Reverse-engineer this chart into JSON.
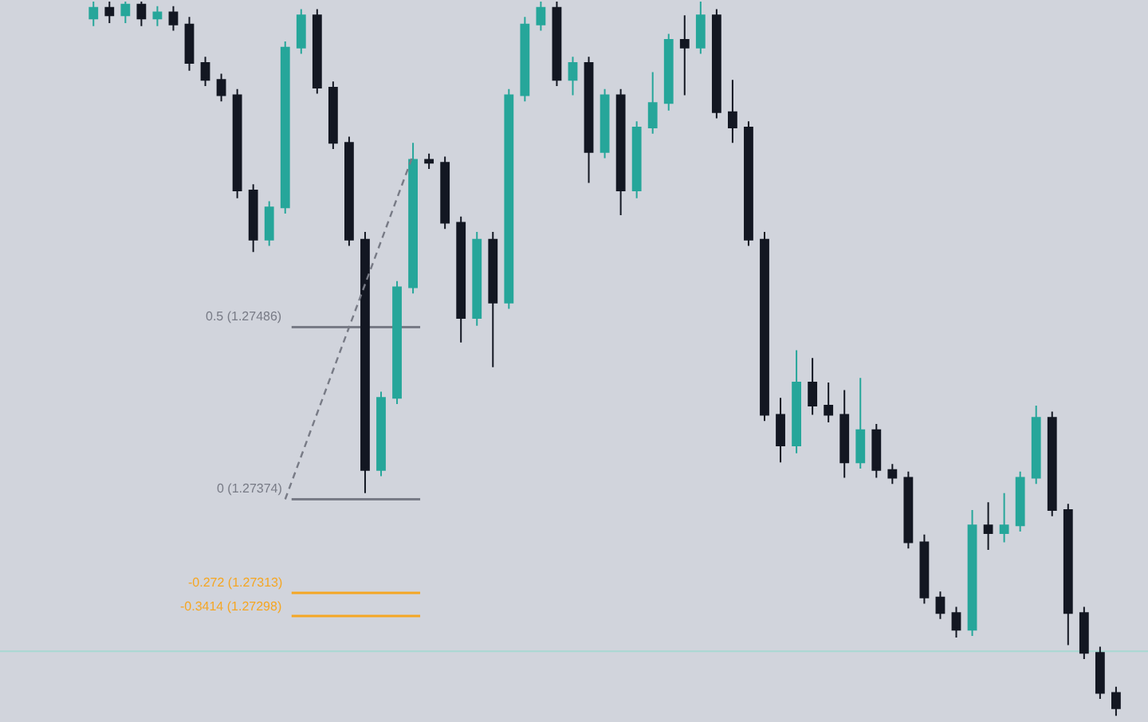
{
  "chart_data": {
    "type": "candlestick",
    "categories": [
      null,
      null,
      null,
      null,
      null,
      null,
      null,
      null,
      null,
      null,
      null,
      null,
      null,
      null,
      null,
      null,
      null,
      null,
      null,
      null,
      null,
      null,
      null,
      null,
      null,
      null,
      null,
      null,
      null,
      null,
      null,
      null,
      null,
      null,
      null,
      null,
      null,
      null,
      null,
      null,
      null,
      null,
      null,
      null,
      null,
      null,
      null,
      null,
      null,
      null,
      null,
      null,
      null,
      null,
      null,
      null,
      null,
      null,
      null,
      null,
      null,
      null,
      null,
      null,
      null
    ],
    "ohlc": [
      [
        1.27687,
        1.27698,
        1.27682,
        1.27694
      ],
      [
        1.27694,
        1.27698,
        1.27684,
        1.27689
      ],
      [
        1.27689,
        1.27698,
        1.27684,
        1.27696
      ],
      [
        1.27696,
        1.27698,
        1.27682,
        1.27687
      ],
      [
        1.27687,
        1.27695,
        1.27682,
        1.27691
      ],
      [
        1.27691,
        1.27695,
        1.27679,
        1.27683
      ],
      [
        1.27683,
        1.27688,
        1.27653,
        1.27658
      ],
      [
        1.27658,
        1.27662,
        1.27643,
        1.27647
      ],
      [
        1.27647,
        1.27651,
        1.27633,
        1.27637
      ],
      [
        1.27637,
        1.27641,
        1.2757,
        1.27575
      ],
      [
        1.27575,
        1.27579,
        1.27535,
        1.27543
      ],
      [
        1.27543,
        1.27568,
        1.27539,
        1.27564
      ],
      [
        1.27564,
        1.27672,
        1.2756,
        1.27668
      ],
      [
        1.27668,
        1.27693,
        1.27664,
        1.27689
      ],
      [
        1.27689,
        1.27693,
        1.27638,
        1.27642
      ],
      [
        1.27642,
        1.27646,
        1.27602,
        1.27606
      ],
      [
        1.27606,
        1.2761,
        1.27539,
        1.27543
      ],
      [
        1.27543,
        1.27548,
        1.27378,
        1.27393
      ],
      [
        1.27393,
        1.27444,
        1.27389,
        1.2744
      ],
      [
        1.2744,
        1.27516,
        1.27436,
        1.27512
      ],
      [
        1.27512,
        1.27606,
        1.27508,
        1.27595
      ],
      [
        1.27595,
        1.27599,
        1.27589,
        1.27593
      ],
      [
        1.27593,
        1.27597,
        1.2755,
        1.27554
      ],
      [
        1.27554,
        1.27558,
        1.27476,
        1.27492
      ],
      [
        1.27492,
        1.27548,
        1.27487,
        1.27543
      ],
      [
        1.27543,
        1.27548,
        1.2746,
        1.27502
      ],
      [
        1.27502,
        1.27641,
        1.27498,
        1.27637
      ],
      [
        1.27637,
        1.27688,
        1.27633,
        1.27683
      ],
      [
        1.27683,
        1.27698,
        1.27679,
        1.27694
      ],
      [
        1.27694,
        1.27698,
        1.27643,
        1.27647
      ],
      [
        1.27647,
        1.27662,
        1.27637,
        1.27658
      ],
      [
        1.27658,
        1.27662,
        1.2758,
        1.276
      ],
      [
        1.276,
        1.27641,
        1.27596,
        1.27637
      ],
      [
        1.27637,
        1.27641,
        1.27559,
        1.27575
      ],
      [
        1.27575,
        1.2762,
        1.2757,
        1.27616
      ],
      [
        1.27616,
        1.27652,
        1.27612,
        1.27632
      ],
      [
        1.27632,
        1.27677,
        1.27627,
        1.27673
      ],
      [
        1.27673,
        1.27689,
        1.27637,
        1.27668
      ],
      [
        1.27668,
        1.27698,
        1.27664,
        1.27689
      ],
      [
        1.27689,
        1.27693,
        1.27622,
        1.27626
      ],
      [
        1.27626,
        1.27647,
        1.27606,
        1.27616
      ],
      [
        1.27616,
        1.2762,
        1.27539,
        1.27543
      ],
      [
        1.27543,
        1.27548,
        1.27425,
        1.27429
      ],
      [
        1.27429,
        1.2744,
        1.27398,
        1.27409
      ],
      [
        1.27409,
        1.27471,
        1.27404,
        1.2745
      ],
      [
        1.2745,
        1.27466,
        1.27429,
        1.27435
      ],
      [
        1.27435,
        1.2745,
        1.27424,
        1.27429
      ],
      [
        1.27429,
        1.27445,
        1.27388,
        1.27398
      ],
      [
        1.27398,
        1.27453,
        1.27394,
        1.27419
      ],
      [
        1.27419,
        1.27423,
        1.27388,
        1.27393
      ],
      [
        1.27393,
        1.27397,
        1.27384,
        1.27388
      ],
      [
        1.27388,
        1.27392,
        1.27342,
        1.27346
      ],
      [
        1.27346,
        1.27351,
        1.27306,
        1.2731
      ],
      [
        1.2731,
        1.27314,
        1.27296,
        1.273
      ],
      [
        1.273,
        1.27304,
        1.27284,
        1.27289
      ],
      [
        1.27289,
        1.27367,
        1.27285,
        1.27357
      ],
      [
        1.27357,
        1.27372,
        1.27341,
        1.27352
      ],
      [
        1.27352,
        1.27378,
        1.27346,
        1.27357
      ],
      [
        1.27357,
        1.27392,
        1.27353,
        1.27388
      ],
      [
        1.27388,
        1.27435,
        1.27384,
        1.27427
      ],
      [
        1.27427,
        1.27431,
        1.27363,
        1.27367
      ],
      [
        1.27367,
        1.27371,
        1.27279,
        1.273
      ],
      [
        1.273,
        1.27304,
        1.2727,
        1.27274
      ],
      [
        1.27274,
        1.27278,
        1.27244,
        1.27248
      ],
      [
        1.27248,
        1.27252,
        1.27233,
        1.27238
      ]
    ],
    "colors": [
      "#26a69a",
      "#131722",
      "#26a69a",
      "#131722",
      "#26a69a",
      "#131722",
      "#131722",
      "#131722",
      "#131722",
      "#131722",
      "#131722",
      "#26a69a",
      "#26a69a",
      "#26a69a",
      "#131722",
      "#131722",
      "#131722",
      "#131722",
      "#26a69a",
      "#26a69a",
      "#26a69a",
      "#131722",
      "#131722",
      "#131722",
      "#26a69a",
      "#131722",
      "#26a69a",
      "#26a69a",
      "#26a69a",
      "#131722",
      "#26a69a",
      "#131722",
      "#26a69a",
      "#131722",
      "#26a69a",
      "#26a69a",
      "#26a69a",
      "#131722",
      "#26a69a",
      "#131722",
      "#131722",
      "#131722",
      "#131722",
      "#131722",
      "#26a69a",
      "#131722",
      "#131722",
      "#131722",
      "#26a69a",
      "#131722",
      "#131722",
      "#131722",
      "#131722",
      "#131722",
      "#131722",
      "#26a69a",
      "#131722",
      "#26a69a",
      "#26a69a",
      "#26a69a",
      "#131722",
      "#131722",
      "#131722",
      "#131722",
      "#131722"
    ],
    "series": [
      {
        "type": "line",
        "line_style": "dashed",
        "color": "#787b86",
        "values": [
          null,
          null,
          null,
          null,
          null,
          null,
          null,
          null,
          null,
          null,
          null,
          null,
          1.27374,
          null,
          null,
          null,
          null,
          null,
          null,
          null,
          1.27598,
          null,
          null,
          null,
          null,
          null,
          null,
          null,
          null,
          null,
          null,
          null,
          null,
          null,
          null,
          null,
          null,
          null,
          null,
          null,
          null,
          null,
          null,
          null,
          null,
          null,
          null,
          null,
          null,
          null,
          null,
          null,
          null,
          null,
          null,
          null,
          null,
          null,
          null,
          null,
          null,
          null,
          null,
          null,
          null
        ]
      }
    ],
    "ylim": [
      1.27229,
      1.27699
    ],
    "tick_labels": false,
    "ref_lines": [
      {
        "axis": "y",
        "value": 1.27486,
        "label": "0.5 (1.27486)",
        "color": "#787b86"
      },
      {
        "axis": "y",
        "value": 1.27374,
        "label": "0 (1.27374)",
        "color": "#787b86"
      },
      {
        "axis": "y",
        "value": 1.27313,
        "label": "-0.272 (1.27313)",
        "color": "#f5a623"
      },
      {
        "axis": "y",
        "value": 1.27298,
        "label": "-0.3414 (1.27298)",
        "color": "#f5a623"
      },
      {
        "axis": "y",
        "value": 1.27275,
        "color": "#a8d8d2"
      }
    ]
  }
}
